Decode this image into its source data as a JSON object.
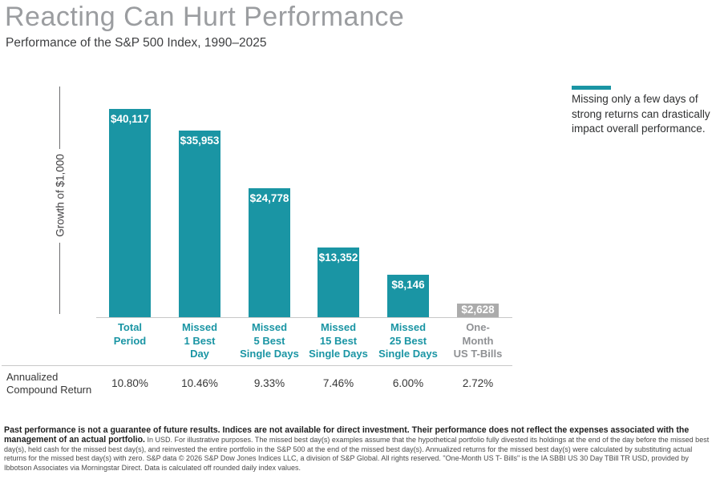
{
  "header": {
    "title": "Reacting Can Hurt Performance",
    "subtitle": "Performance of the S&P 500 Index, 1990–2025"
  },
  "colors": {
    "teal": "#1a95a4",
    "gray_bar": "#ababab",
    "title_gray": "#9b9da0",
    "tbill_label_gray": "#8f9194",
    "axis_line_gray": "#c8c8c8"
  },
  "chart_data": {
    "type": "bar",
    "title": "Reacting Can Hurt Performance",
    "subtitle": "Performance of the S&P 500 Index, 1990–2025",
    "ylabel": "Growth of $1,000",
    "xlabel": "",
    "grid": false,
    "ylim": [
      0,
      42000
    ],
    "categories": [
      "Total Period",
      "Missed 1 Best Day",
      "Missed 5 Best Single Days",
      "Missed 15 Best Single Days",
      "Missed 25 Best Single Days",
      "One-Month US T-Bills"
    ],
    "category_label_lines": [
      [
        "Total",
        "Period"
      ],
      [
        "Missed",
        "1 Best",
        "Day"
      ],
      [
        "Missed",
        "5 Best",
        "Single Days"
      ],
      [
        "Missed",
        "15 Best",
        "Single Days"
      ],
      [
        "Missed",
        "25 Best",
        "Single Days"
      ],
      [
        "One-",
        "Month",
        "US T-Bills"
      ]
    ],
    "values": [
      40117,
      35953,
      24778,
      13352,
      8146,
      2628
    ],
    "value_labels": [
      "$40,117",
      "$35,953",
      "$24,778",
      "$13,352",
      "$8,146",
      "$2,628"
    ],
    "bar_styles": [
      "teal",
      "teal",
      "teal",
      "teal",
      "teal",
      "gray"
    ],
    "series": [
      {
        "name": "Annualized Compound Return",
        "values": [
          "10.80%",
          "10.46%",
          "9.33%",
          "7.46%",
          "6.00%",
          "2.72%"
        ]
      }
    ]
  },
  "return_row": {
    "label": "Annualized\nCompound Return"
  },
  "annotation": {
    "text": "Missing only a few days of strong returns can drastically impact overall performance."
  },
  "footnote": {
    "bold": "Past performance is not a guarantee of future results. Indices are not available for direct investment. Their performance does not reflect the expenses associated with the management of an actual portfolio.",
    "regular": " In USD. For illustrative purposes. The missed best day(s) examples assume that the hypothetical portfolio fully divested its holdings at the end of the day before the missed best day(s), held cash for the missed best day(s), and reinvested the entire portfolio in the S&P 500 at the end of the missed best day(s). Annualized returns for the missed best day(s) were calculated by substituting actual returns for the missed best day(s) with zero. S&P data © 2026 S&P Dow Jones Indices LLC, a division of S&P Global. All rights reserved. \"One-Month US T- Bills\" is the IA SBBI US 30 Day TBill TR USD, provided by Ibbotson Associates via Morningstar Direct. Data is calculated off rounded daily index values."
  }
}
